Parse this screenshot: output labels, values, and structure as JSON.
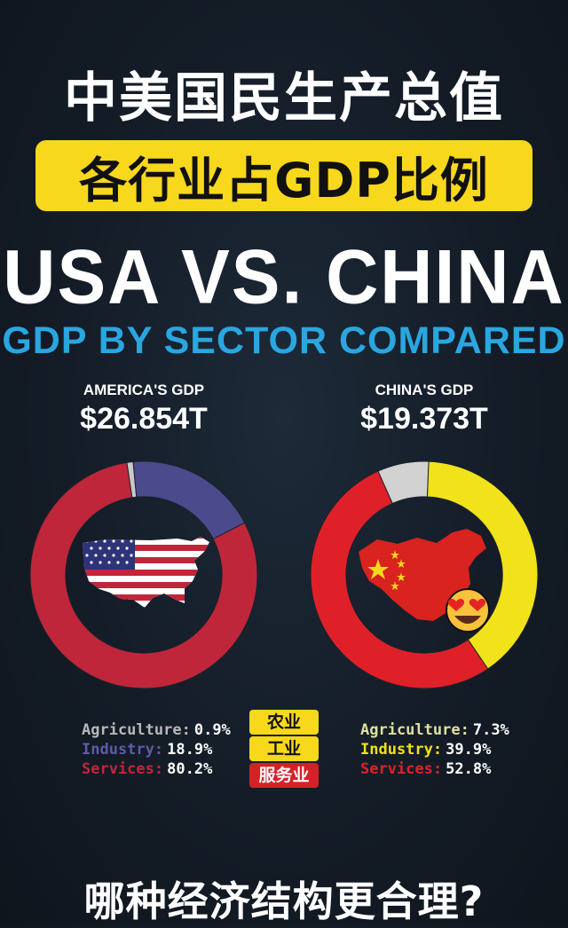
{
  "header": {
    "title_cn": "中美国民生产总值",
    "subtitle_cn": "各行业占GDP比例",
    "title_en": "USA VS. CHINA",
    "subtitle_en": "GDP BY SECTOR COMPARED"
  },
  "legend_tags": {
    "agriculture": "农业",
    "industry": "工业",
    "services": "服务业"
  },
  "footer": {
    "question": "哪种经济结构更合理?"
  },
  "colors": {
    "usa_agriculture": "#c9c9c9",
    "usa_industry": "#4a4a8c",
    "usa_services": "#c0263a",
    "china_agriculture": "#d2d2d2",
    "china_industry": "#f2e21a",
    "china_services": "#e02029",
    "title_blue": "#2aa6e0",
    "banner_yellow": "#f7d81c"
  },
  "chart_data": [
    {
      "type": "pie",
      "variant": "donut",
      "label": "AMERICA'S GDP",
      "total": "$26.854T",
      "slices": [
        {
          "name": "Agriculture",
          "value": 0.9,
          "display": "0.9%"
        },
        {
          "name": "Industry",
          "value": 18.9,
          "display": "18.9%"
        },
        {
          "name": "Services",
          "value": 80.2,
          "display": "80.2%"
        }
      ]
    },
    {
      "type": "pie",
      "variant": "donut",
      "label": "CHINA'S GDP",
      "total": "$19.373T",
      "slices": [
        {
          "name": "Agriculture",
          "value": 7.3,
          "display": "7.3%"
        },
        {
          "name": "Industry",
          "value": 39.9,
          "display": "39.9%"
        },
        {
          "name": "Services",
          "value": 52.8,
          "display": "52.8%"
        }
      ]
    }
  ]
}
